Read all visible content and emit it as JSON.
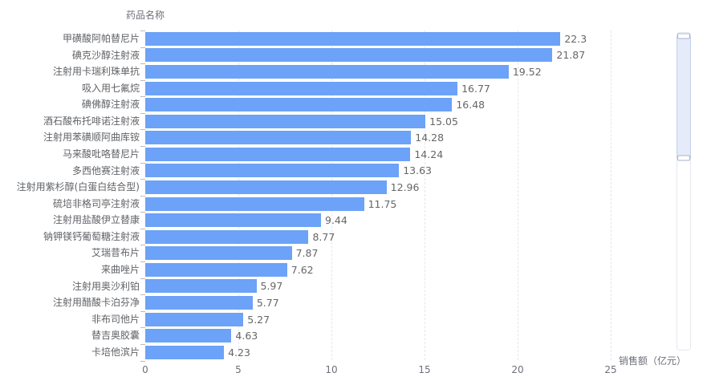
{
  "chart_data": {
    "type": "bar",
    "orientation": "horizontal",
    "title": "",
    "ylabel": "药品名称",
    "xlabel": "销售额（亿元）",
    "categories": [
      "甲磺酸阿帕替尼片",
      "碘克沙醇注射液",
      "注射用卡瑞利珠单抗",
      "吸入用七氟烷",
      "碘佛醇注射液",
      "酒石酸布托啡诺注射液",
      "注射用苯磺顺阿曲库铵",
      "马来酸吡咯替尼片",
      "多西他赛注射液",
      "注射用紫杉醇(白蛋白结合型)",
      "硫培非格司亭注射液",
      "注射用盐酸伊立替康",
      "钠钾镁钙葡萄糖注射液",
      "艾瑞昔布片",
      "来曲唑片",
      "注射用奥沙利铂",
      "注射用醋酸卡泊芬净",
      "非布司他片",
      "替吉奥胶囊",
      "卡培他滨片"
    ],
    "values": [
      22.3,
      21.87,
      19.52,
      16.77,
      16.48,
      15.05,
      14.28,
      14.24,
      13.63,
      12.96,
      11.75,
      9.44,
      8.77,
      7.87,
      7.62,
      5.97,
      5.77,
      5.27,
      4.63,
      4.23
    ],
    "x_ticks": [
      0,
      5,
      10,
      15,
      20,
      25
    ],
    "xlim": [
      0,
      25
    ],
    "grid": true,
    "grid_style": "dashed-vertical",
    "legend": false,
    "sort": "descending",
    "colors": {
      "bar": "#6CA2F8",
      "axis_label": "#6E7079",
      "category_label": "#606266",
      "value_label": "#666666",
      "grid_line": "#E3E6F0",
      "background": "#FFFFFF"
    },
    "scrollbar": {
      "visible": true,
      "position": "right",
      "selected_fraction_top": 0.01,
      "selected_fraction_bottom": 0.39
    }
  }
}
